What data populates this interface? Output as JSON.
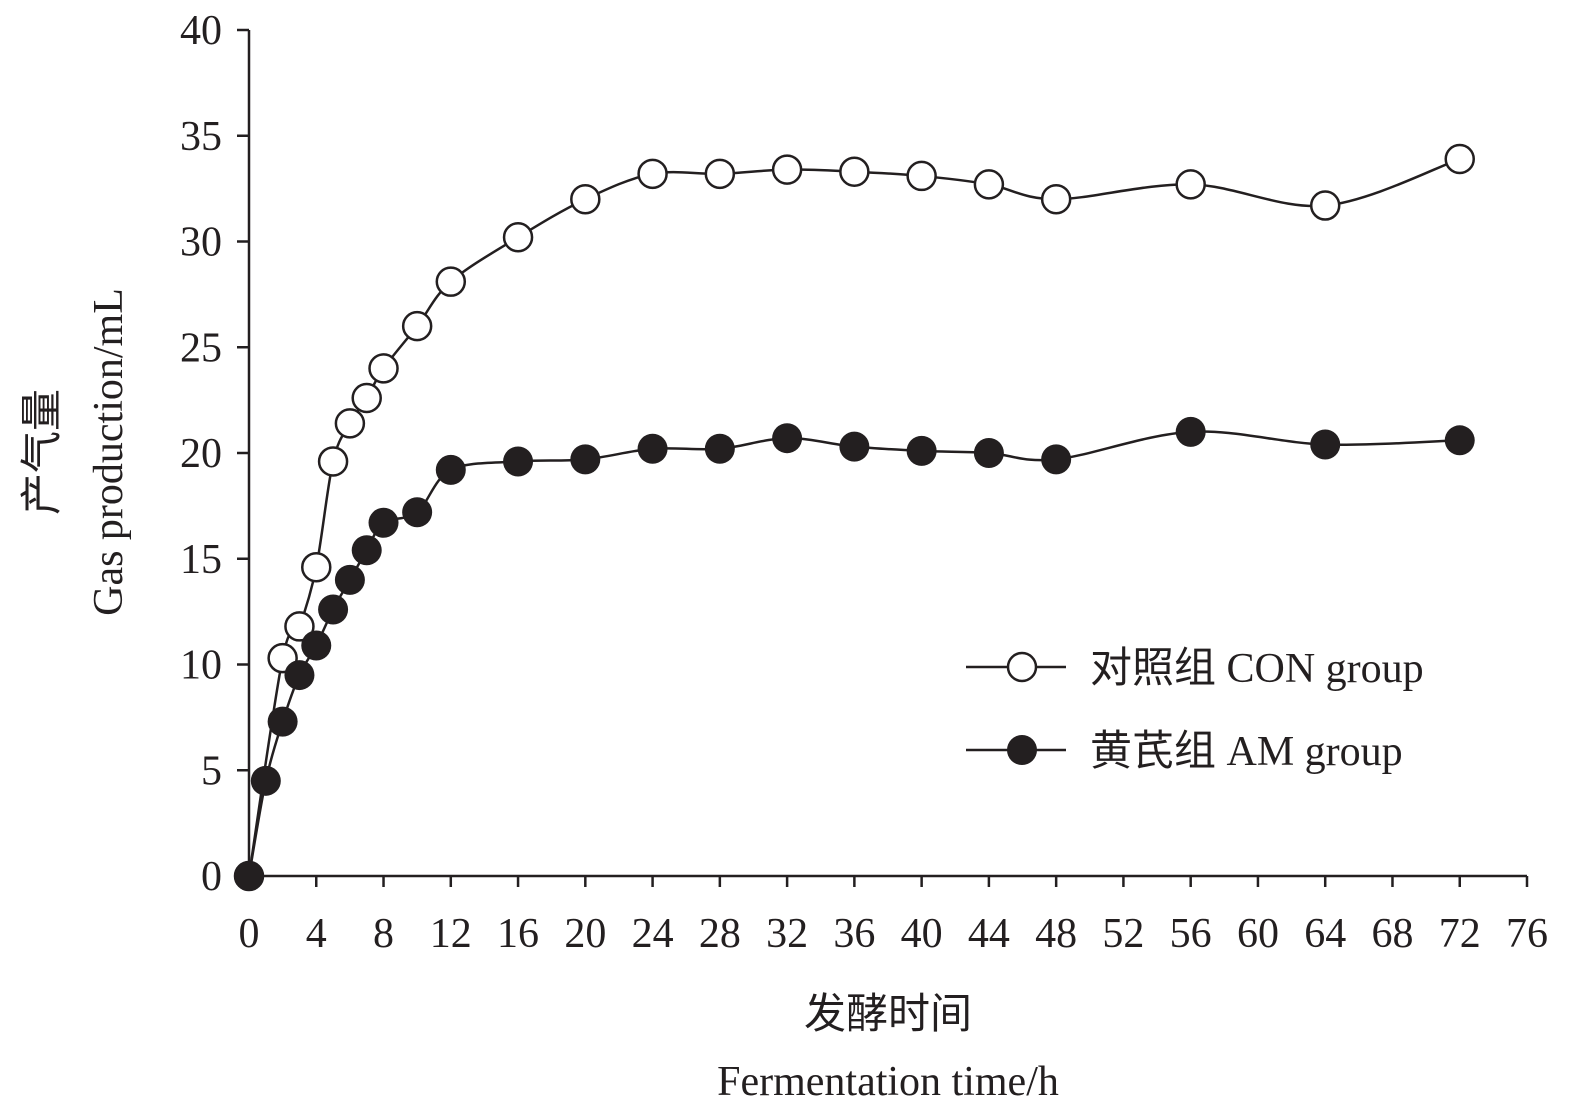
{
  "chart_data": {
    "type": "line",
    "title": "",
    "ylabel_cn": "产气量",
    "ylabel": "Gas production/mL",
    "xlabel_cn": "发酵时间",
    "xlabel": "Fermentation time/h",
    "xlim": [
      0,
      76
    ],
    "ylim": [
      0,
      40
    ],
    "xticks": [
      0,
      4,
      8,
      12,
      16,
      20,
      24,
      28,
      32,
      36,
      40,
      44,
      48,
      52,
      56,
      60,
      64,
      68,
      72,
      76
    ],
    "yticks": [
      0,
      5,
      10,
      15,
      20,
      25,
      30,
      35,
      40
    ],
    "grid": false,
    "legend_position": "right-middle",
    "series": [
      {
        "name": "对照组 CON group",
        "marker": "open-circle",
        "x": [
          0,
          2,
          3,
          4,
          5,
          6,
          7,
          8,
          10,
          12,
          16,
          20,
          24,
          28,
          32,
          36,
          40,
          44,
          48,
          56,
          64,
          72
        ],
        "y": [
          0,
          10.3,
          11.8,
          14.6,
          19.6,
          21.4,
          22.6,
          24.0,
          26.0,
          28.1,
          30.2,
          32.0,
          33.2,
          33.2,
          33.4,
          33.3,
          33.1,
          32.7,
          32.0,
          32.7,
          31.7,
          33.9
        ]
      },
      {
        "name": "黄芪组 AM group",
        "marker": "filled-circle",
        "x": [
          0,
          1,
          2,
          3,
          4,
          5,
          6,
          7,
          8,
          10,
          12,
          16,
          20,
          24,
          28,
          32,
          36,
          40,
          44,
          48,
          56,
          64,
          72
        ],
        "y": [
          0,
          4.5,
          7.3,
          9.5,
          10.9,
          12.6,
          14.0,
          15.4,
          16.7,
          17.2,
          19.2,
          19.6,
          19.7,
          20.2,
          20.2,
          20.7,
          20.3,
          20.1,
          20.0,
          19.7,
          21.0,
          20.4,
          20.6
        ]
      }
    ]
  }
}
